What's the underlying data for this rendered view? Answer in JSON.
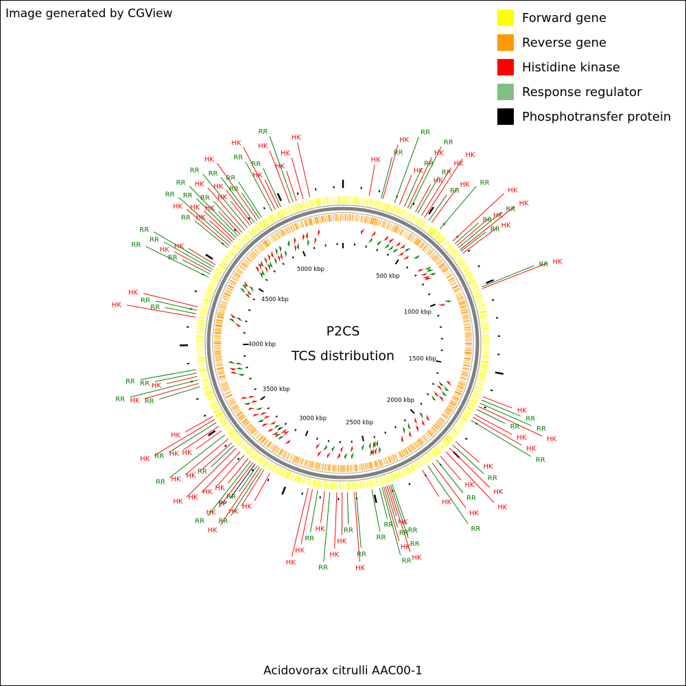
{
  "credit": "Image generated by CGView",
  "legend": [
    {
      "label": "Forward gene",
      "color": "#ffff00"
    },
    {
      "label": "Reverse gene",
      "color": "#ff9900"
    },
    {
      "label": "Histidine kinase",
      "color": "#ff0000"
    },
    {
      "label": "Response regulator",
      "color": "#80c080"
    },
    {
      "label": "Phosphotransfer protein",
      "color": "#000000"
    }
  ],
  "map": {
    "title_line1": "P2CS",
    "title_line2": "TCS distribution",
    "genome_length_kbp": 5350,
    "tick_labels": [
      "500 kbp",
      "1000 kbp",
      "1500 kbp",
      "2000 kbp",
      "2500 kbp",
      "3000 kbp",
      "3500 kbp",
      "4000 kbp",
      "4500 kbp",
      "5000 kbp"
    ],
    "label_colors": {
      "HK": "#ff0000",
      "RR": "#008000",
      "PP": "#000000"
    },
    "features": [
      {
        "type": "HK",
        "pos": 150
      },
      {
        "type": "RR",
        "pos": 220
      },
      {
        "type": "HK",
        "pos": 230
      },
      {
        "type": "RR",
        "pos": 300
      },
      {
        "type": "HK",
        "pos": 330
      },
      {
        "type": "RR",
        "pos": 360
      },
      {
        "type": "HK",
        "pos": 380
      },
      {
        "type": "RR",
        "pos": 395
      },
      {
        "type": "HK",
        "pos": 430
      },
      {
        "type": "RR",
        "pos": 445
      },
      {
        "type": "HK",
        "pos": 470
      },
      {
        "type": "HK",
        "pos": 490
      },
      {
        "type": "RR",
        "pos": 520
      },
      {
        "type": "HK",
        "pos": 540
      },
      {
        "type": "RR",
        "pos": 600
      },
      {
        "type": "HK",
        "pos": 700
      },
      {
        "type": "RR",
        "pos": 720
      },
      {
        "type": "HK",
        "pos": 735
      },
      {
        "type": "RR",
        "pos": 750
      },
      {
        "type": "HK",
        "pos": 765
      },
      {
        "type": "RR",
        "pos": 775
      },
      {
        "type": "HK",
        "pos": 790
      },
      {
        "type": "RR",
        "pos": 1010
      },
      {
        "type": "HK",
        "pos": 1020
      },
      {
        "type": "HK",
        "pos": 1650
      },
      {
        "type": "RR",
        "pos": 1670
      },
      {
        "type": "RR",
        "pos": 1690
      },
      {
        "type": "HK",
        "pos": 1710
      },
      {
        "type": "RR",
        "pos": 1730
      },
      {
        "type": "HK",
        "pos": 1760
      },
      {
        "type": "HK",
        "pos": 1780
      },
      {
        "type": "RR",
        "pos": 1800
      },
      {
        "type": "HK",
        "pos": 1950
      },
      {
        "type": "RR",
        "pos": 1975
      },
      {
        "type": "HK",
        "pos": 2000
      },
      {
        "type": "HK",
        "pos": 2030
      },
      {
        "type": "HK",
        "pos": 2070
      },
      {
        "type": "RR",
        "pos": 2100
      },
      {
        "type": "HK",
        "pos": 2130
      },
      {
        "type": "RR",
        "pos": 2160
      },
      {
        "type": "HK",
        "pos": 2200
      },
      {
        "type": "RR",
        "pos": 2390
      },
      {
        "type": "RR",
        "pos": 2400
      },
      {
        "type": "HK",
        "pos": 2410
      },
      {
        "type": "HK",
        "pos": 2420
      },
      {
        "type": "RR",
        "pos": 2430
      },
      {
        "type": "HK",
        "pos": 2440
      },
      {
        "type": "RR",
        "pos": 2450
      },
      {
        "type": "RR",
        "pos": 2465
      },
      {
        "type": "RR",
        "pos": 2510
      },
      {
        "type": "RR",
        "pos": 2600
      },
      {
        "type": "HK",
        "pos": 2610
      },
      {
        "type": "RR",
        "pos": 2650
      },
      {
        "type": "HK",
        "pos": 2680
      },
      {
        "type": "HK",
        "pos": 2710
      },
      {
        "type": "RR",
        "pos": 2750
      },
      {
        "type": "HK",
        "pos": 2780
      },
      {
        "type": "RR",
        "pos": 2820
      },
      {
        "type": "HK",
        "pos": 2850
      },
      {
        "type": "HK",
        "pos": 2875
      },
      {
        "type": "HK",
        "pos": 3110
      },
      {
        "type": "HK",
        "pos": 3150
      },
      {
        "type": "RR",
        "pos": 3165
      },
      {
        "type": "HK",
        "pos": 3180
      },
      {
        "type": "RR",
        "pos": 3195
      },
      {
        "type": "PP",
        "pos": 3210
      },
      {
        "type": "HK",
        "pos": 3225
      },
      {
        "type": "RR",
        "pos": 3240
      },
      {
        "type": "HK",
        "pos": 3260
      },
      {
        "type": "HK",
        "pos": 3290
      },
      {
        "type": "HK",
        "pos": 3320
      },
      {
        "type": "HK",
        "pos": 3350
      },
      {
        "type": "RR",
        "pos": 3370
      },
      {
        "type": "HK",
        "pos": 3390
      },
      {
        "type": "HK",
        "pos": 3420
      },
      {
        "type": "RR",
        "pos": 3450
      },
      {
        "type": "HK",
        "pos": 3480
      },
      {
        "type": "HK",
        "pos": 3510
      },
      {
        "type": "RR",
        "pos": 3535
      },
      {
        "type": "HK",
        "pos": 3555
      },
      {
        "type": "HK",
        "pos": 3575
      },
      {
        "type": "RR",
        "pos": 3760
      },
      {
        "type": "HK",
        "pos": 3780
      },
      {
        "type": "RR",
        "pos": 3800
      },
      {
        "type": "HK",
        "pos": 3820
      },
      {
        "type": "RR",
        "pos": 3840
      },
      {
        "type": "RR",
        "pos": 3860
      },
      {
        "type": "HK",
        "pos": 4160
      },
      {
        "type": "RR",
        "pos": 4180
      },
      {
        "type": "RR",
        "pos": 4200
      },
      {
        "type": "HK",
        "pos": 4220
      },
      {
        "type": "RR",
        "pos": 4400
      },
      {
        "type": "RR",
        "pos": 4420
      },
      {
        "type": "HK",
        "pos": 4435
      },
      {
        "type": "RR",
        "pos": 4450
      },
      {
        "type": "RR",
        "pos": 4465
      },
      {
        "type": "HK",
        "pos": 4480
      },
      {
        "type": "RR",
        "pos": 4600
      },
      {
        "type": "HK",
        "pos": 4615
      },
      {
        "type": "RR",
        "pos": 4630
      },
      {
        "type": "HK",
        "pos": 4645
      },
      {
        "type": "HK",
        "pos": 4660
      },
      {
        "type": "RR",
        "pos": 4675
      },
      {
        "type": "RR",
        "pos": 4690
      },
      {
        "type": "HK",
        "pos": 4705
      },
      {
        "type": "RR",
        "pos": 4720
      },
      {
        "type": "HK",
        "pos": 4740
      },
      {
        "type": "RR",
        "pos": 4760
      },
      {
        "type": "HK",
        "pos": 4780
      },
      {
        "type": "HK",
        "pos": 4795
      },
      {
        "type": "RR",
        "pos": 4810
      },
      {
        "type": "HK",
        "pos": 4830
      },
      {
        "type": "RR",
        "pos": 4845
      },
      {
        "type": "RR",
        "pos": 4860
      },
      {
        "type": "RR",
        "pos": 4930
      },
      {
        "type": "HK",
        "pos": 4950
      },
      {
        "type": "HK",
        "pos": 4970
      },
      {
        "type": "RR",
        "pos": 4985
      },
      {
        "type": "HK",
        "pos": 5040
      },
      {
        "type": "RR",
        "pos": 5060
      },
      {
        "type": "HK",
        "pos": 5080
      },
      {
        "type": "HK",
        "pos": 5120
      },
      {
        "type": "HK",
        "pos": 5160
      }
    ]
  },
  "footer": "Acidovorax citrulli AAC00-1"
}
